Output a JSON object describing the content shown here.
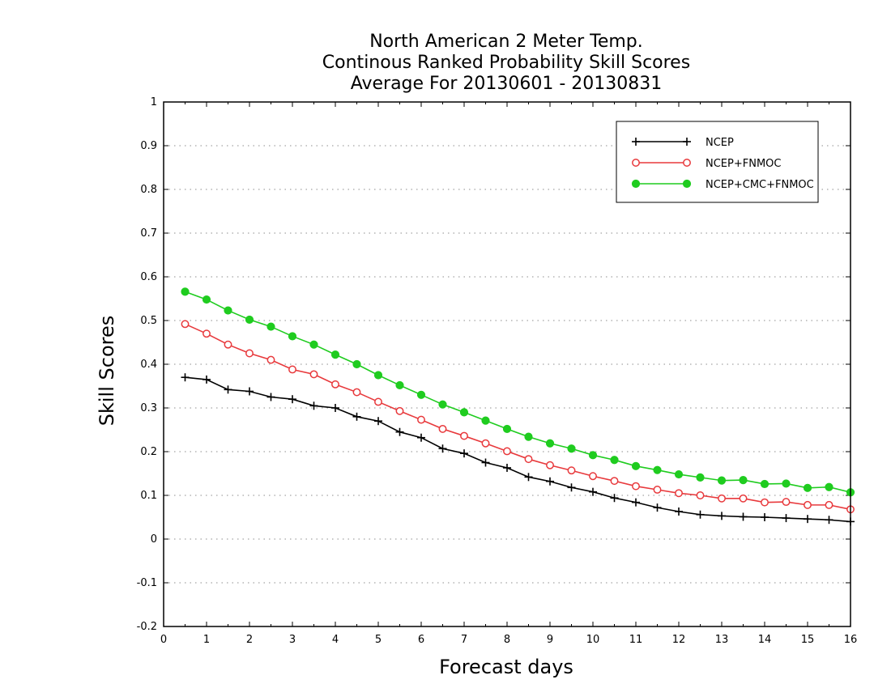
{
  "chart_data": {
    "type": "line",
    "title": [
      "North American 2 Meter Temp.",
      "Continous Ranked Probability Skill Scores",
      "Average For 20130601 - 20130831"
    ],
    "xlabel": "Forecast days",
    "ylabel": "Skill Scores",
    "xlim": [
      0,
      16
    ],
    "ylim": [
      -0.2,
      1
    ],
    "xticks": [
      "0",
      "1",
      "2",
      "3",
      "4",
      "5",
      "6",
      "7",
      "8",
      "9",
      "10",
      "11",
      "12",
      "13",
      "14",
      "15",
      "16"
    ],
    "yticks": [
      "-0.2",
      "-0.1",
      "0",
      "0.1",
      "0.2",
      "0.3",
      "0.4",
      "0.5",
      "0.6",
      "0.7",
      "0.8",
      "0.9",
      "1"
    ],
    "grid": "horizontal dotted",
    "legend_position": "top-right",
    "x": [
      0.5,
      1,
      1.5,
      2,
      2.5,
      3,
      3.5,
      4,
      4.5,
      5,
      5.5,
      6,
      6.5,
      7,
      7.5,
      8,
      8.5,
      9,
      9.5,
      10,
      10.5,
      11,
      11.5,
      12,
      12.5,
      13,
      13.5,
      14,
      14.5,
      15,
      15.5,
      16
    ],
    "series": [
      {
        "name": "NCEP",
        "color": "#000000",
        "marker": "plus",
        "values": [
          0.37,
          0.365,
          0.342,
          0.338,
          0.325,
          0.32,
          0.305,
          0.3,
          0.28,
          0.27,
          0.245,
          0.232,
          0.207,
          0.196,
          0.175,
          0.163,
          0.142,
          0.132,
          0.118,
          0.108,
          0.094,
          0.084,
          0.072,
          0.063,
          0.056,
          0.053,
          0.051,
          0.05,
          0.048,
          0.046,
          0.044,
          0.04
        ]
      },
      {
        "name": "NCEP+FNMOC",
        "color": "#e8393c",
        "marker": "open-circle",
        "values": [
          0.492,
          0.47,
          0.445,
          0.425,
          0.41,
          0.388,
          0.377,
          0.354,
          0.336,
          0.314,
          0.293,
          0.273,
          0.252,
          0.236,
          0.219,
          0.201,
          0.183,
          0.169,
          0.157,
          0.144,
          0.133,
          0.121,
          0.113,
          0.105,
          0.1,
          0.093,
          0.093,
          0.084,
          0.085,
          0.078,
          0.078,
          0.068
        ]
      },
      {
        "name": "NCEP+CMC+FNMOC",
        "color": "#1fcc1f",
        "marker": "filled-circle",
        "values": [
          0.566,
          0.548,
          0.523,
          0.502,
          0.486,
          0.464,
          0.445,
          0.422,
          0.4,
          0.375,
          0.352,
          0.33,
          0.308,
          0.29,
          0.271,
          0.252,
          0.234,
          0.219,
          0.207,
          0.192,
          0.181,
          0.167,
          0.158,
          0.148,
          0.141,
          0.134,
          0.135,
          0.126,
          0.127,
          0.117,
          0.119,
          0.107
        ]
      }
    ]
  }
}
